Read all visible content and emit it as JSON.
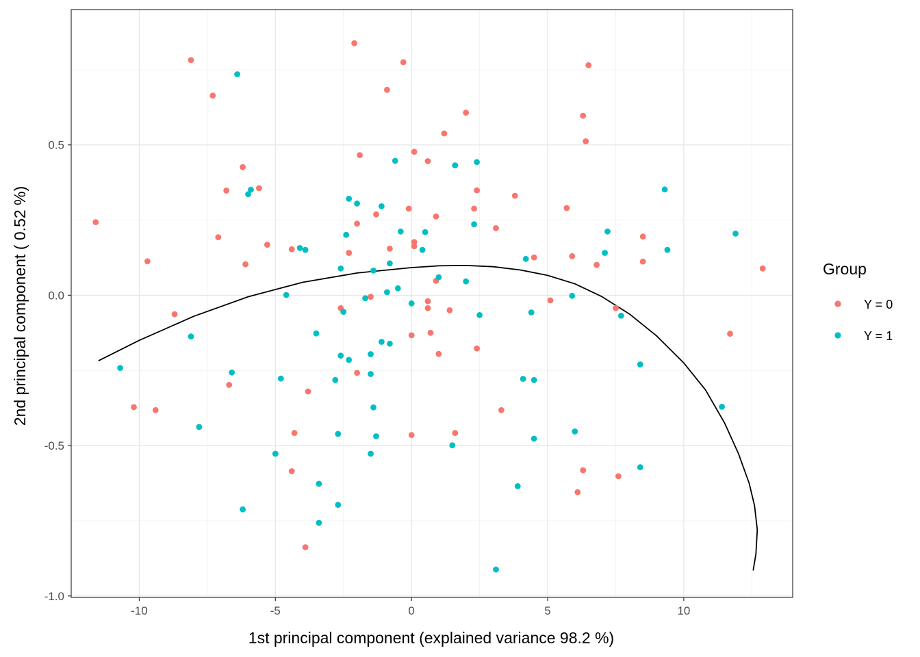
{
  "chart_data": {
    "type": "scatter",
    "xlabel": "1st principal component (explained variance 98.2 %)",
    "ylabel": "2nd principal component ( 0.52 %)",
    "xlim": [
      -12.5,
      14.0
    ],
    "ylim": [
      -1.005,
      0.95
    ],
    "x_ticks": [
      -10,
      -5,
      0,
      5,
      10
    ],
    "x_tick_labels": [
      "-10",
      "-5",
      "0",
      "5",
      "10"
    ],
    "y_ticks": [
      -1.0,
      -0.5,
      0.0,
      0.5
    ],
    "y_tick_labels": [
      "-1.0",
      "-0.5",
      "0.0",
      "0.5"
    ],
    "grid": true,
    "legend": {
      "title": "Group",
      "position": "right",
      "entries": [
        {
          "label": "Y = 0",
          "color": "#F8766D"
        },
        {
          "label": "Y = 1",
          "color": "#00BFC4"
        }
      ]
    },
    "series": [
      {
        "name": "Y = 0",
        "color": "#F8766D",
        "points": [
          [
            -11.6,
            0.243
          ],
          [
            -10.2,
            -0.372
          ],
          [
            -9.7,
            0.113
          ],
          [
            -9.4,
            -0.382
          ],
          [
            -8.7,
            -0.063
          ],
          [
            -8.1,
            0.782
          ],
          [
            -7.3,
            0.664
          ],
          [
            -7.1,
            0.193
          ],
          [
            -6.8,
            0.348
          ],
          [
            -6.7,
            -0.298
          ],
          [
            -6.2,
            0.426
          ],
          [
            -6.1,
            0.103
          ],
          [
            -5.6,
            0.356
          ],
          [
            -5.3,
            0.168
          ],
          [
            -4.4,
            0.153
          ],
          [
            -4.4,
            -0.585
          ],
          [
            -4.3,
            -0.458
          ],
          [
            -3.9,
            -0.838
          ],
          [
            -3.8,
            -0.32
          ],
          [
            -2.6,
            -0.043
          ],
          [
            -2.3,
            0.141
          ],
          [
            -2.1,
            0.838
          ],
          [
            -2.0,
            0.238
          ],
          [
            -2.0,
            -0.258
          ],
          [
            -1.9,
            0.466
          ],
          [
            -1.5,
            -0.005
          ],
          [
            -1.3,
            0.269
          ],
          [
            -0.9,
            0.683
          ],
          [
            -0.8,
            0.155
          ],
          [
            -0.3,
            0.775
          ],
          [
            -0.1,
            0.288
          ],
          [
            0.0,
            -0.133
          ],
          [
            0.0,
            -0.465
          ],
          [
            0.1,
            0.177
          ],
          [
            0.1,
            0.163
          ],
          [
            0.1,
            0.477
          ],
          [
            0.6,
            -0.043
          ],
          [
            0.6,
            -0.02
          ],
          [
            0.6,
            0.446
          ],
          [
            0.7,
            -0.125
          ],
          [
            0.9,
            0.262
          ],
          [
            0.9,
            0.048
          ],
          [
            1.0,
            -0.195
          ],
          [
            1.2,
            0.538
          ],
          [
            1.4,
            -0.05
          ],
          [
            1.6,
            -0.458
          ],
          [
            2.0,
            0.607
          ],
          [
            2.3,
            0.288
          ],
          [
            2.4,
            -0.177
          ],
          [
            2.4,
            0.349
          ],
          [
            3.1,
            0.223
          ],
          [
            3.3,
            -0.382
          ],
          [
            3.8,
            0.331
          ],
          [
            4.5,
            0.126
          ],
          [
            5.1,
            -0.017
          ],
          [
            5.7,
            0.29
          ],
          [
            5.9,
            0.13
          ],
          [
            6.1,
            -0.655
          ],
          [
            6.3,
            0.597
          ],
          [
            6.3,
            -0.582
          ],
          [
            6.4,
            0.512
          ],
          [
            6.5,
            0.765
          ],
          [
            6.8,
            0.101
          ],
          [
            7.5,
            -0.043
          ],
          [
            7.6,
            -0.602
          ],
          [
            8.5,
            0.195
          ],
          [
            8.5,
            0.112
          ],
          [
            11.7,
            -0.128
          ],
          [
            12.9,
            0.089
          ]
        ]
      },
      {
        "name": "Y = 1",
        "color": "#00BFC4",
        "points": [
          [
            -10.7,
            -0.242
          ],
          [
            -8.1,
            -0.137
          ],
          [
            -7.8,
            -0.438
          ],
          [
            -6.6,
            -0.257
          ],
          [
            -6.4,
            0.735
          ],
          [
            -6.2,
            -0.712
          ],
          [
            -6.0,
            0.336
          ],
          [
            -5.9,
            0.351
          ],
          [
            -5.0,
            -0.527
          ],
          [
            -4.8,
            -0.277
          ],
          [
            -4.6,
            0.001
          ],
          [
            -4.1,
            0.157
          ],
          [
            -3.9,
            0.151
          ],
          [
            -3.5,
            -0.127
          ],
          [
            -3.4,
            -0.627
          ],
          [
            -3.4,
            -0.757
          ],
          [
            -2.8,
            -0.282
          ],
          [
            -2.7,
            -0.461
          ],
          [
            -2.7,
            -0.697
          ],
          [
            -2.6,
            0.089
          ],
          [
            -2.6,
            -0.201
          ],
          [
            -2.5,
            -0.055
          ],
          [
            -2.4,
            0.201
          ],
          [
            -2.3,
            -0.215
          ],
          [
            -2.3,
            0.321
          ],
          [
            -2.0,
            0.305
          ],
          [
            -1.7,
            -0.01
          ],
          [
            -1.5,
            -0.262
          ],
          [
            -1.5,
            -0.196
          ],
          [
            -1.4,
            -0.373
          ],
          [
            -1.4,
            0.082
          ],
          [
            -1.5,
            -0.527
          ],
          [
            -1.3,
            -0.469
          ],
          [
            -1.1,
            -0.155
          ],
          [
            -1.1,
            0.296
          ],
          [
            -0.9,
            0.01
          ],
          [
            -0.8,
            -0.161
          ],
          [
            -0.8,
            0.106
          ],
          [
            -0.6,
            0.447
          ],
          [
            -0.5,
            0.023
          ],
          [
            -0.4,
            0.212
          ],
          [
            0.0,
            -0.027
          ],
          [
            0.4,
            0.151
          ],
          [
            0.5,
            0.21
          ],
          [
            1.0,
            0.06
          ],
          [
            1.5,
            -0.499
          ],
          [
            1.6,
            0.432
          ],
          [
            2.0,
            0.046
          ],
          [
            2.3,
            0.236
          ],
          [
            2.4,
            0.443
          ],
          [
            2.5,
            -0.066
          ],
          [
            3.1,
            -0.912
          ],
          [
            3.9,
            -0.635
          ],
          [
            4.1,
            -0.278
          ],
          [
            4.2,
            0.121
          ],
          [
            4.4,
            -0.057
          ],
          [
            4.5,
            -0.282
          ],
          [
            4.5,
            -0.477
          ],
          [
            5.9,
            -0.002
          ],
          [
            6.0,
            -0.453
          ],
          [
            7.1,
            0.141
          ],
          [
            7.2,
            0.212
          ],
          [
            7.7,
            -0.068
          ],
          [
            8.4,
            -0.572
          ],
          [
            8.4,
            -0.23
          ],
          [
            9.3,
            0.352
          ],
          [
            9.4,
            0.151
          ],
          [
            11.4,
            -0.371
          ],
          [
            11.9,
            0.205
          ]
        ]
      }
    ],
    "principal_curve": [
      [
        -11.5,
        -0.218
      ],
      [
        -10.0,
        -0.15
      ],
      [
        -8.0,
        -0.07
      ],
      [
        -6.0,
        -0.005
      ],
      [
        -4.0,
        0.043
      ],
      [
        -2.0,
        0.074
      ],
      [
        0.0,
        0.092
      ],
      [
        1.0,
        0.098
      ],
      [
        2.0,
        0.099
      ],
      [
        3.0,
        0.095
      ],
      [
        4.0,
        0.084
      ],
      [
        5.0,
        0.066
      ],
      [
        6.0,
        0.038
      ],
      [
        7.0,
        -0.005
      ],
      [
        8.0,
        -0.062
      ],
      [
        9.0,
        -0.135
      ],
      [
        10.0,
        -0.225
      ],
      [
        10.8,
        -0.315
      ],
      [
        11.5,
        -0.425
      ],
      [
        12.0,
        -0.525
      ],
      [
        12.4,
        -0.625
      ],
      [
        12.6,
        -0.7
      ],
      [
        12.7,
        -0.78
      ],
      [
        12.65,
        -0.86
      ],
      [
        12.55,
        -0.915
      ]
    ]
  }
}
